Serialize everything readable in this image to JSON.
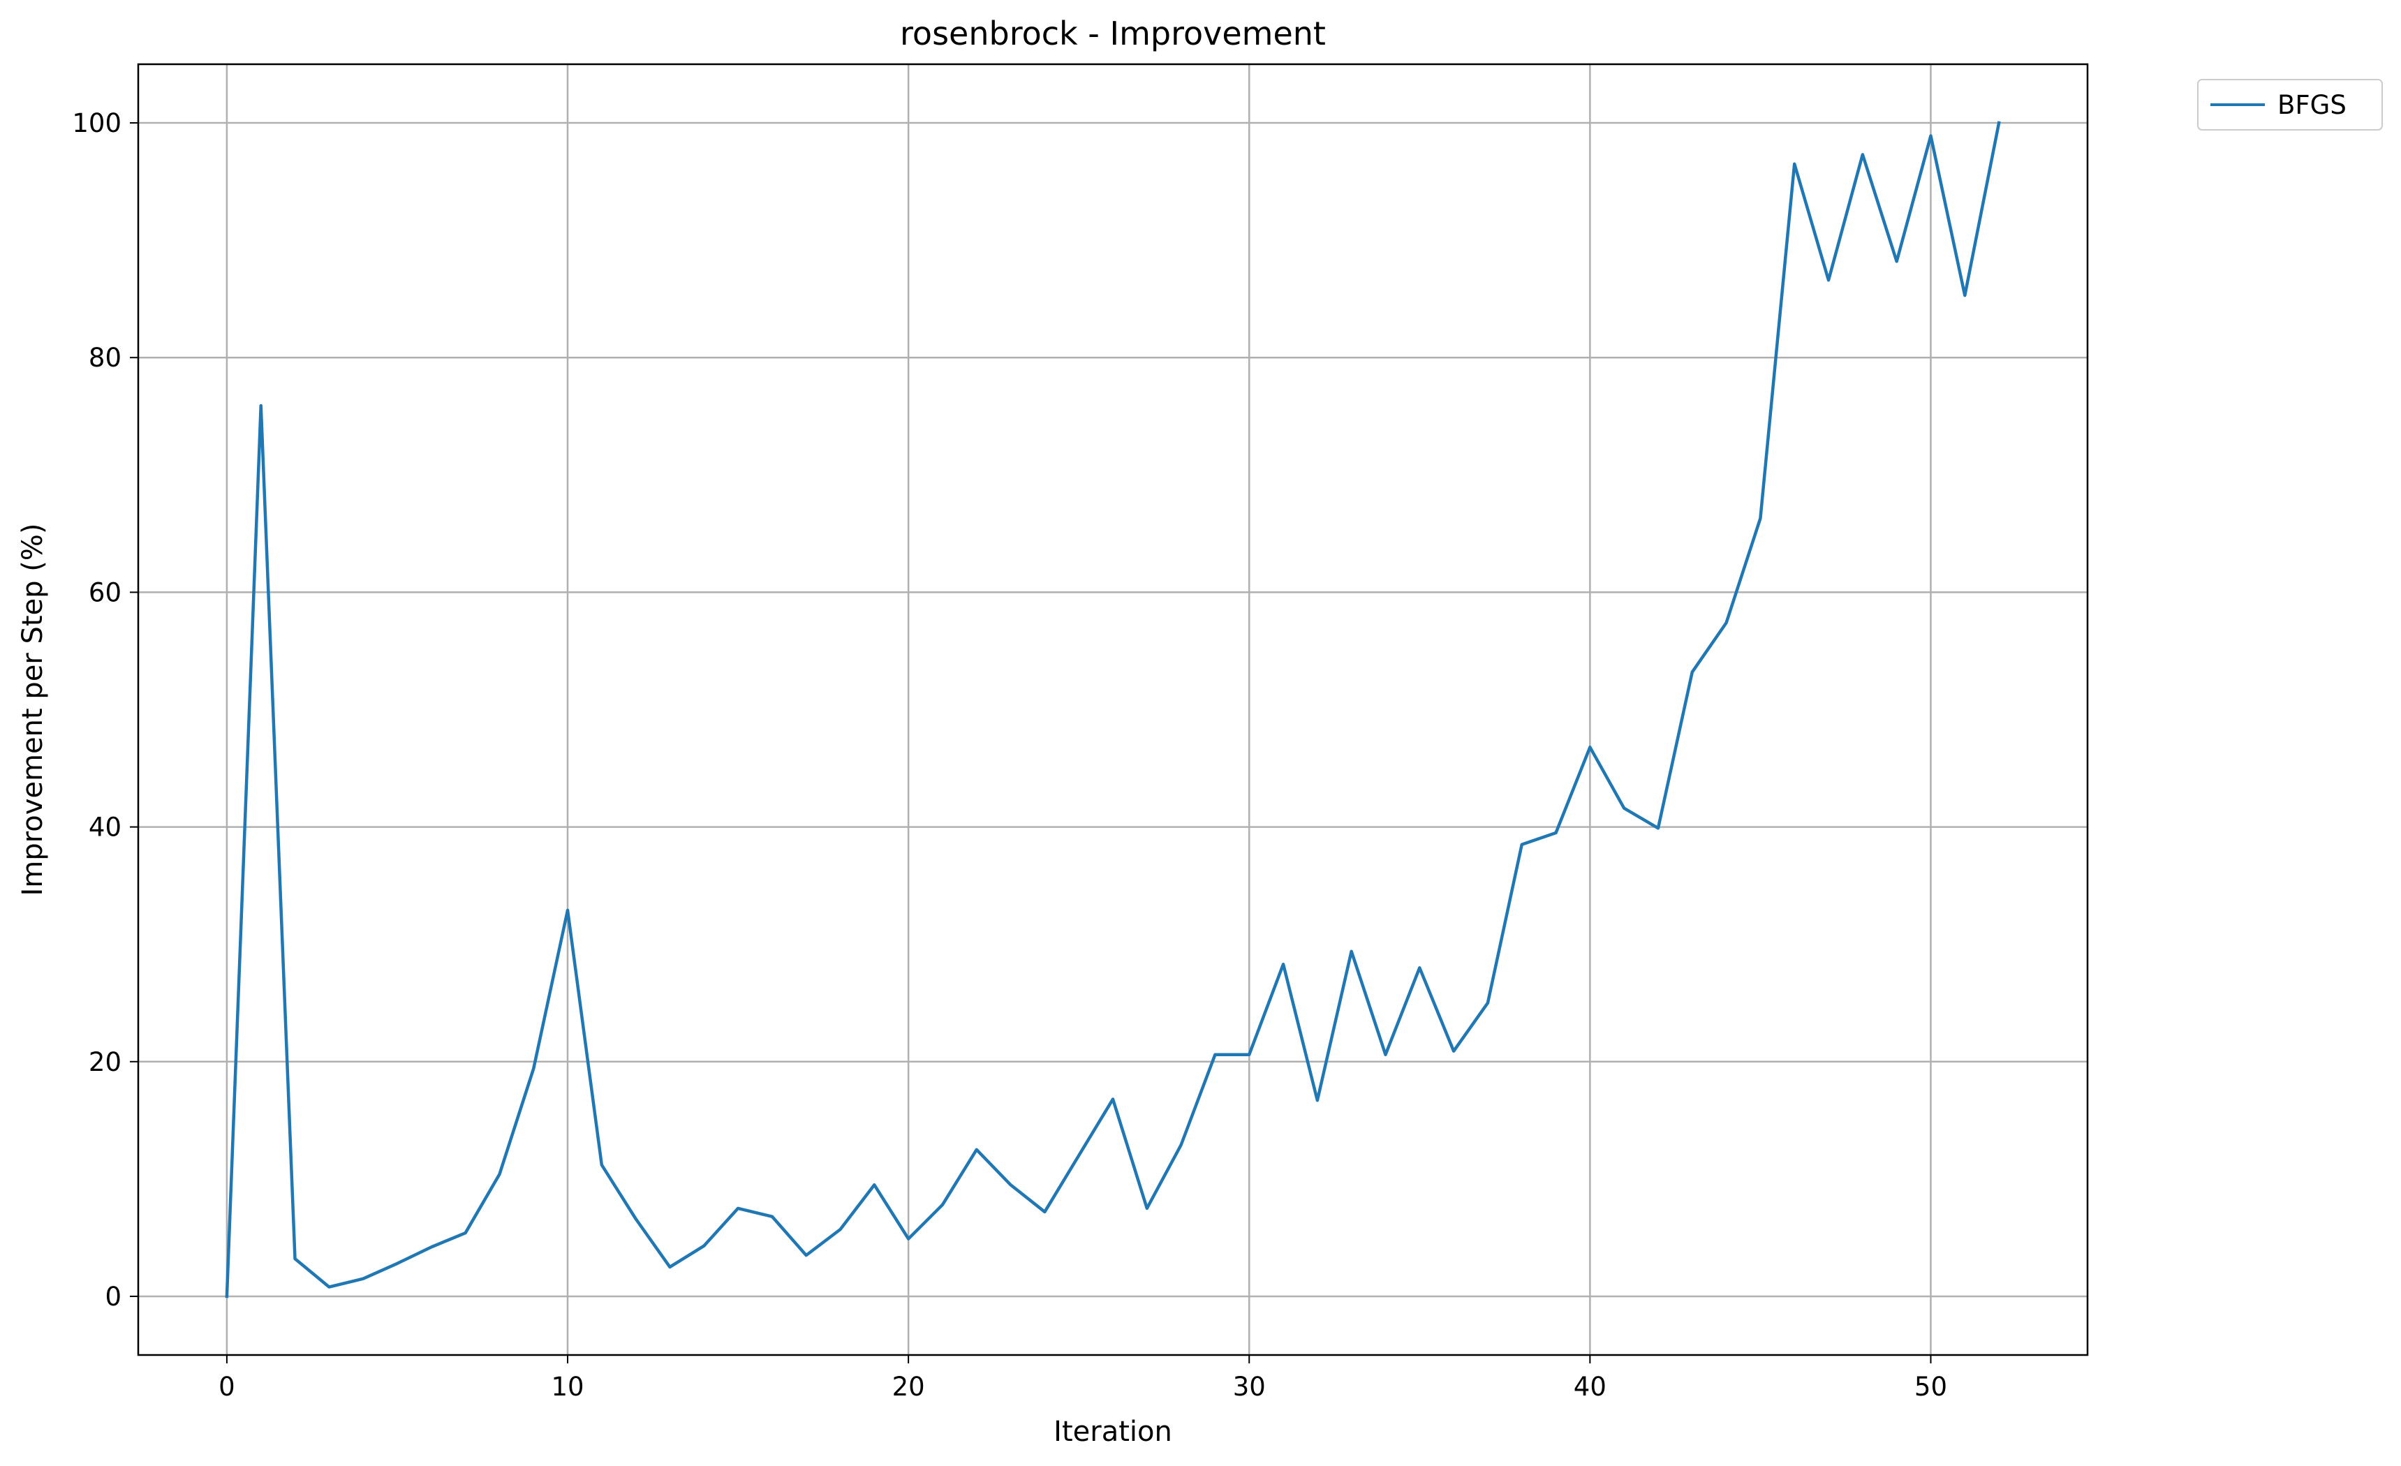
{
  "chart_data": {
    "type": "line",
    "title": "rosenbrock - Improvement",
    "xlabel": "Iteration",
    "ylabel": "Improvement per Step (%)",
    "xlim": [
      -2.6,
      54.6
    ],
    "ylim": [
      -5,
      105
    ],
    "xticks": [
      0,
      10,
      20,
      30,
      40,
      50
    ],
    "yticks": [
      0,
      20,
      40,
      60,
      80,
      100
    ],
    "grid": true,
    "legend_position": "outside-top-right",
    "series": [
      {
        "name": "BFGS",
        "color": "#1f77b4",
        "x": [
          0,
          1,
          2,
          3,
          4,
          5,
          6,
          7,
          8,
          9,
          10,
          11,
          12,
          13,
          14,
          15,
          16,
          17,
          18,
          19,
          20,
          21,
          22,
          23,
          24,
          25,
          26,
          27,
          28,
          29,
          30,
          31,
          32,
          33,
          34,
          35,
          36,
          37,
          38,
          39,
          40,
          41,
          42,
          43,
          44,
          45,
          46,
          47,
          48,
          49,
          50,
          51,
          52
        ],
        "values": [
          0,
          75.9,
          3.2,
          0.8,
          1.5,
          2.8,
          4.2,
          5.4,
          10.4,
          19.4,
          32.9,
          11.2,
          6.6,
          2.5,
          4.3,
          7.5,
          6.8,
          3.5,
          5.7,
          9.5,
          4.9,
          7.8,
          12.5,
          9.5,
          7.2,
          12.0,
          16.8,
          7.5,
          12.9,
          20.6,
          20.6,
          28.3,
          16.7,
          29.4,
          20.6,
          28.0,
          20.9,
          25.0,
          38.5,
          39.5,
          46.8,
          41.6,
          39.9,
          53.2,
          57.4,
          66.3,
          96.5,
          86.6,
          97.3,
          88.2,
          98.9,
          85.3,
          100.0
        ]
      }
    ]
  }
}
